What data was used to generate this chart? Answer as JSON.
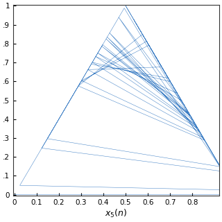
{
  "xlabel": "$x_5(n)$",
  "xlim": [
    -0.005,
    0.92
  ],
  "ylim": [
    -0.005,
    1.005
  ],
  "xticks": [
    0,
    0.1,
    0.2,
    0.3,
    0.4,
    0.5,
    0.6,
    0.7,
    0.8
  ],
  "yticks": [
    0,
    0.1,
    0.2,
    0.3,
    0.4,
    0.5,
    0.6,
    0.7,
    0.8,
    0.9,
    1.0
  ],
  "line_color": "#3b7dc4",
  "line_width": 0.35,
  "n_iter": 8000,
  "seed": 12345,
  "figsize": [
    3.2,
    3.2
  ],
  "dpi": 100
}
